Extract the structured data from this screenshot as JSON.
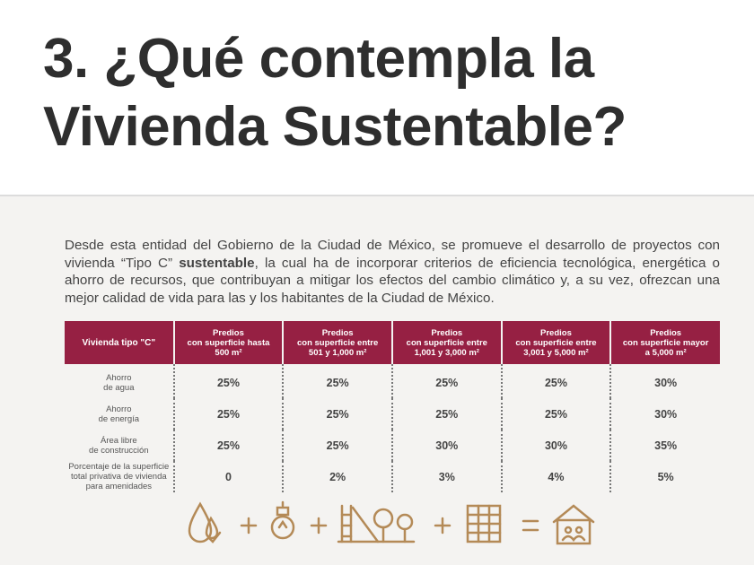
{
  "header": {
    "title_lines": [
      "3. ¿Qué contempla la",
      "Vivienda Sustentable?"
    ]
  },
  "intro": {
    "before": "Desde esta entidad del Gobierno de la Ciudad de México, se promueve el desarrollo de proyectos con vivienda “Tipo C” ",
    "bold": "sustentable",
    "after": ", la cual ha de incorporar criterios de eficiencia tecnológica, energética o ahorro de recursos, que contribuyan a mitigar los efectos del cambio climático y, a su vez, ofrezcan una mejor calidad de vida para las y los habitantes de la Ciudad de México."
  },
  "table": {
    "header": [
      [
        "Vivienda tipo \"C\""
      ],
      [
        "Predios",
        "con superficie hasta",
        "500 m²"
      ],
      [
        "Predios",
        "con superficie entre",
        "501 y 1,000 m²"
      ],
      [
        "Predios",
        "con superficie entre",
        "1,001 y 3,000 m²"
      ],
      [
        "Predios",
        "con superficie entre",
        "3,001 y 5,000 m²"
      ],
      [
        "Predios",
        "con superficie mayor",
        "a 5,000 m²"
      ]
    ],
    "rows": [
      {
        "label": [
          "Ahorro",
          "de agua"
        ],
        "values": [
          "25%",
          "25%",
          "25%",
          "25%",
          "30%"
        ]
      },
      {
        "label": [
          "Ahorro",
          "de energía"
        ],
        "values": [
          "25%",
          "25%",
          "25%",
          "25%",
          "30%"
        ]
      },
      {
        "label": [
          "Área libre",
          "de construcción"
        ],
        "values": [
          "25%",
          "25%",
          "30%",
          "30%",
          "35%"
        ]
      },
      {
        "label": [
          "Porcentaje de la superficie",
          "total privativa de vivienda",
          "para amenidades"
        ],
        "values": [
          "0",
          "2%",
          "3%",
          "4%",
          "5%"
        ]
      }
    ]
  }
}
